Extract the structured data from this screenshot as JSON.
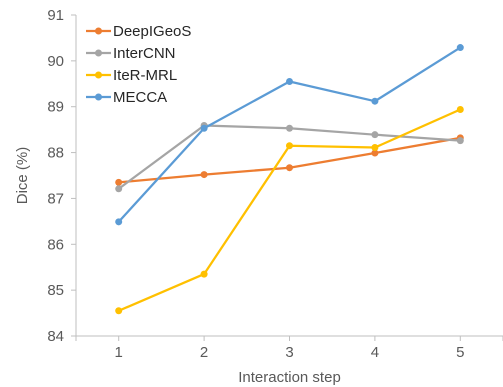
{
  "chart_data": {
    "type": "line",
    "title": "",
    "xlabel": "Interaction step",
    "ylabel": "Dice (%)",
    "x": [
      1,
      2,
      3,
      4,
      5
    ],
    "ylim": [
      84,
      91
    ],
    "yticks": [
      84,
      85,
      86,
      87,
      88,
      89,
      90,
      91
    ],
    "grid": false,
    "legend_position": "top-left",
    "series": [
      {
        "name": "DeepIGeoS",
        "color": "#ED7D31",
        "values": [
          87.35,
          87.52,
          87.67,
          87.99,
          88.32
        ]
      },
      {
        "name": "InterCNN",
        "color": "#A5A5A5",
        "values": [
          87.21,
          88.59,
          88.53,
          88.39,
          88.26
        ]
      },
      {
        "name": "IteR-MRL",
        "color": "#FFC000",
        "values": [
          84.55,
          85.35,
          88.15,
          88.11,
          88.94
        ]
      },
      {
        "name": "MECCA",
        "color": "#5B9BD5",
        "values": [
          86.49,
          88.53,
          89.55,
          89.12,
          90.29
        ]
      }
    ]
  }
}
